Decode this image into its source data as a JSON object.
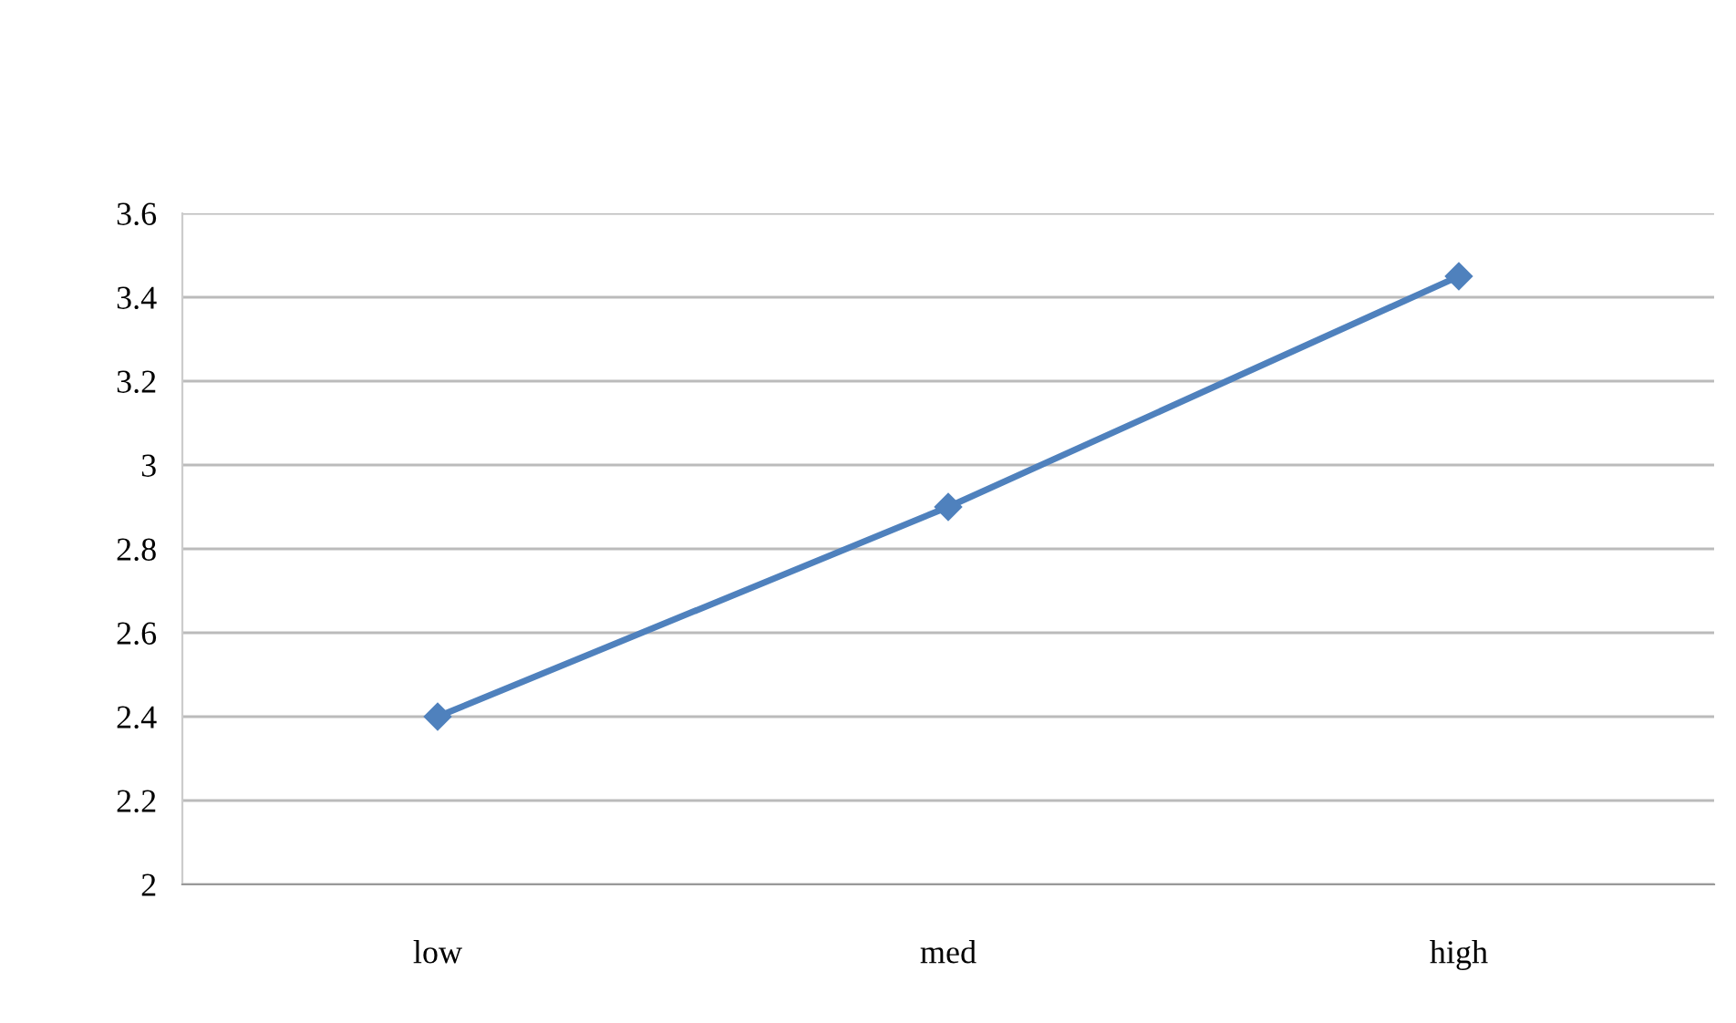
{
  "chart_data": {
    "type": "line",
    "categories": [
      "low",
      "med",
      "high"
    ],
    "series": [
      {
        "color": "#4f81bd",
        "values": [
          2.4,
          2.9,
          3.45
        ]
      }
    ],
    "ylim": [
      2,
      3.6
    ],
    "yticks": [
      2,
      2.2,
      2.4,
      2.6,
      2.8,
      3,
      3.2,
      3.4,
      3.6
    ],
    "grid": "y",
    "marker": "diamond",
    "line_style": "solid"
  }
}
